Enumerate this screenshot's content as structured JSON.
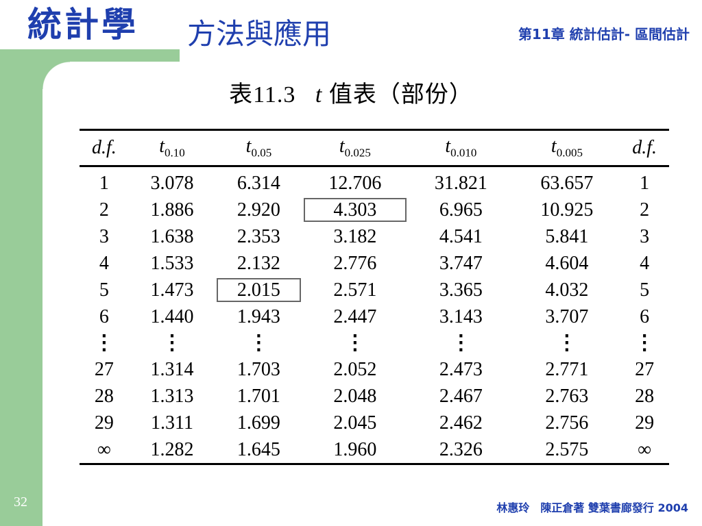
{
  "header": {
    "book_title": "統計學",
    "book_subtitle": "方法與應用",
    "chapter": "第11章 統計估計- 區間估計"
  },
  "caption": {
    "prefix": "表11.3",
    "t": "t",
    "suffix": "值表（部份）"
  },
  "table": {
    "columns": [
      {
        "label": "d.f.",
        "sub": ""
      },
      {
        "label": "t",
        "sub": "0.10"
      },
      {
        "label": "t",
        "sub": "0.05"
      },
      {
        "label": "t",
        "sub": "0.025"
      },
      {
        "label": "t",
        "sub": "0.010"
      },
      {
        "label": "t",
        "sub": "0.005"
      },
      {
        "label": "d.f.",
        "sub": ""
      }
    ],
    "rows": [
      [
        "1",
        "3.078",
        "6.314",
        "12.706",
        "31.821",
        "63.657",
        "1"
      ],
      [
        "2",
        "1.886",
        "2.920",
        "4.303",
        "6.965",
        "10.925",
        "2"
      ],
      [
        "3",
        "1.638",
        "2.353",
        "3.182",
        "4.541",
        "5.841",
        "3"
      ],
      [
        "4",
        "1.533",
        "2.132",
        "2.776",
        "3.747",
        "4.604",
        "4"
      ],
      [
        "5",
        "1.473",
        "2.015",
        "2.571",
        "3.365",
        "4.032",
        "5"
      ],
      [
        "6",
        "1.440",
        "1.943",
        "2.447",
        "3.143",
        "3.707",
        "6"
      ],
      [
        "⋮",
        "⋮",
        "⋮",
        "⋮",
        "⋮",
        "⋮",
        "⋮"
      ],
      [
        "27",
        "1.314",
        "1.703",
        "2.052",
        "2.473",
        "2.771",
        "27"
      ],
      [
        "28",
        "1.313",
        "1.701",
        "2.048",
        "2.467",
        "2.763",
        "28"
      ],
      [
        "29",
        "1.311",
        "1.699",
        "2.045",
        "2.462",
        "2.756",
        "29"
      ],
      [
        "∞",
        "1.282",
        "1.645",
        "1.960",
        "2.326",
        "2.575",
        "∞"
      ]
    ]
  },
  "footer": {
    "page_number": "32",
    "credit": "林惠玲　陳正倉著  雙葉書廊發行  2004"
  },
  "colors": {
    "accent": "#1f3fae",
    "frame": "#99cc99"
  }
}
